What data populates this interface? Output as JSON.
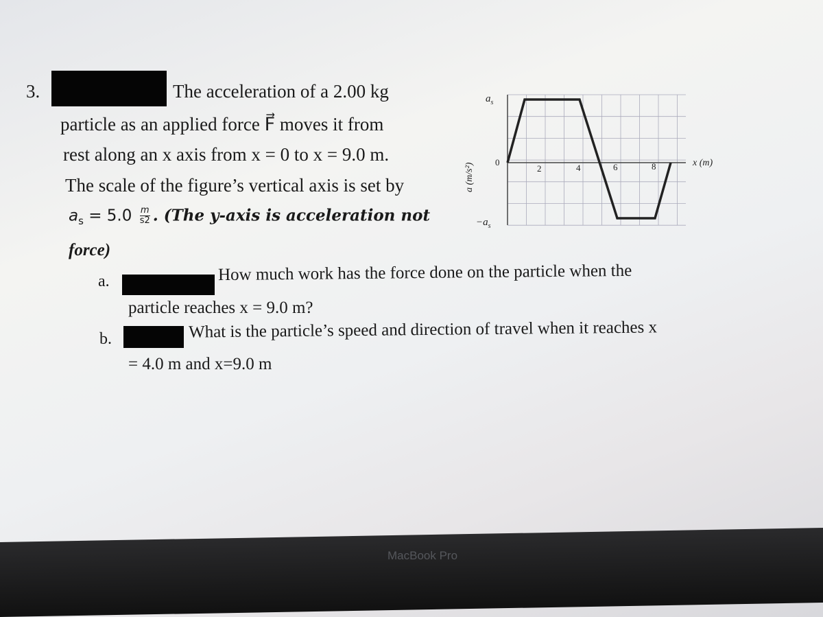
{
  "problem": {
    "number": "3.",
    "lines": [
      "The acceleration of a 2.00 kg",
      "particle as an applied force F⃗ moves it from",
      "rest along an x axis from x = 0 to x = 9.0 m.",
      "The scale of the figure’s vertical axis is set by"
    ],
    "scale": {
      "symbol": "a",
      "subscript": "s",
      "equals": "= 5.0",
      "unit_num": "m",
      "unit_den": "s2",
      "rest": ". (The y-axis is acceleration not"
    },
    "continuation": "force)"
  },
  "parts": [
    {
      "label": "a.",
      "lines": [
        "How much work has the force done on the particle when the",
        "particle reaches x = 9.0 m?"
      ]
    },
    {
      "label": "b.",
      "lines": [
        "What is the particle’s speed and direction of travel when it reaches x",
        "= 4.0 m and x=9.0 m"
      ]
    }
  ],
  "figure": {
    "y_top": "a",
    "y_top_sub": "s",
    "y_bottom": "−a",
    "y_bottom_sub": "s",
    "zero": "0",
    "x_ticks": [
      "2",
      "4",
      "6",
      "8"
    ],
    "x_label": "x (m)",
    "y_label": "a (m/s²)"
  },
  "footer": {
    "brand": "MacBook Pro"
  }
}
